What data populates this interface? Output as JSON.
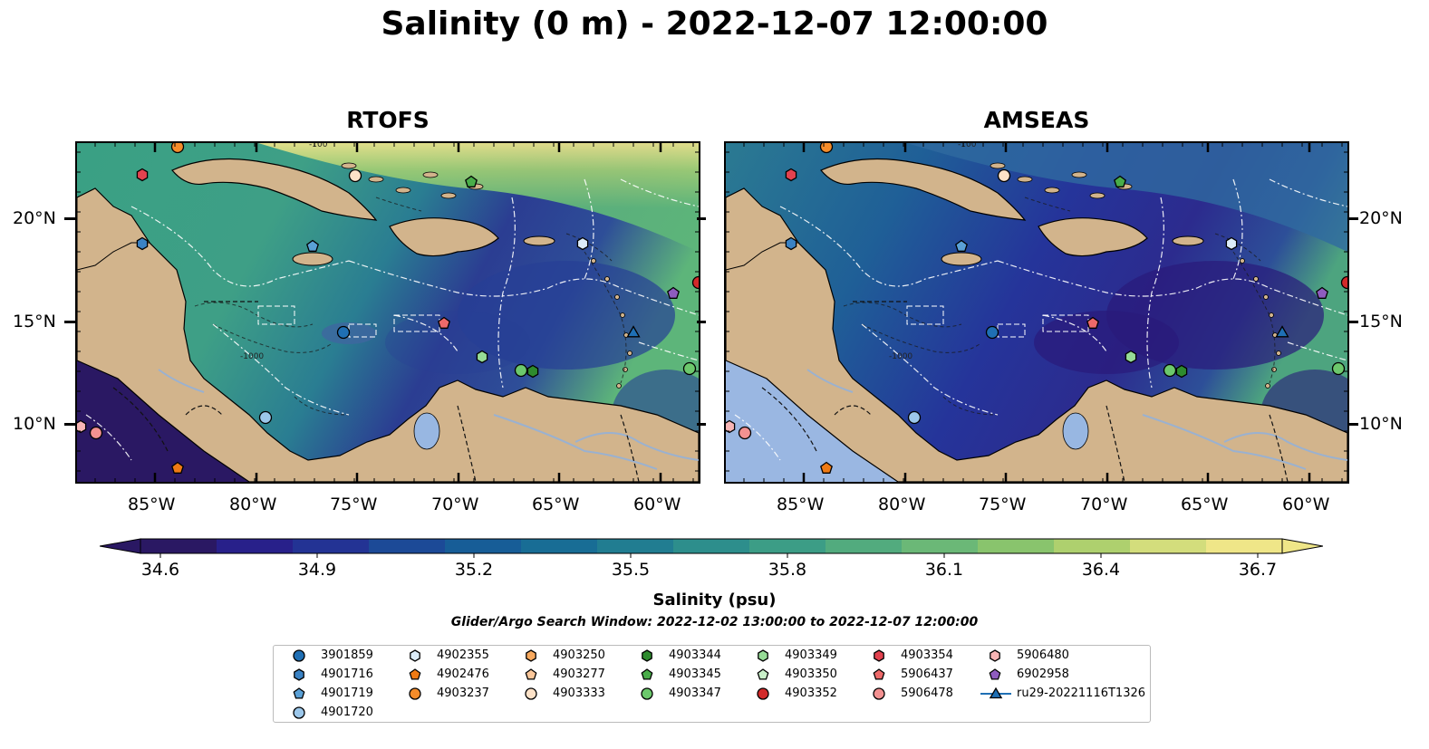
{
  "title": "Salinity (0 m) - 2022-12-07 12:00:00",
  "panels": [
    {
      "title": "RTOFS",
      "variant": "rtofs"
    },
    {
      "title": "AMSEAS",
      "variant": "amseas"
    }
  ],
  "lon_ticks": [
    "85°W",
    "80°W",
    "75°W",
    "70°W",
    "65°W",
    "60°W"
  ],
  "lat_ticks": [
    "20°N",
    "15°N",
    "10°N"
  ],
  "contour_labels": [
    "-100",
    "-1000"
  ],
  "colorbar": {
    "min": 34.6,
    "max": 36.7,
    "ticks": [
      "34.6",
      "34.9",
      "35.2",
      "35.5",
      "35.8",
      "36.1",
      "36.4",
      "36.7"
    ],
    "label": "Salinity (psu)",
    "colors": [
      "#2a1863",
      "#28208a",
      "#233394",
      "#1c4a97",
      "#175d97",
      "#186d95",
      "#217d91",
      "#2d8e8c",
      "#3c9d86",
      "#52ab7e",
      "#6bb877",
      "#89c46d",
      "#aed06e",
      "#d3dd7c",
      "#efe688"
    ]
  },
  "search_window": "Glider/Argo Search Window: 2022-12-02 13:00:00 to 2022-12-07 12:00:00",
  "legend": {
    "entries": [
      {
        "label": "3901859",
        "marker": "circle",
        "color": "#1f6fb4"
      },
      {
        "label": "4901716",
        "marker": "hexagon",
        "color": "#3a82c4"
      },
      {
        "label": "4901719",
        "marker": "pentagon",
        "color": "#5aa0d6"
      },
      {
        "label": "4901720",
        "marker": "circle",
        "color": "#9cc7ea"
      },
      {
        "label": "4902355",
        "marker": "hexagon",
        "color": "#dcecf8"
      },
      {
        "label": "4902476",
        "marker": "pentagon",
        "color": "#ef7a14"
      },
      {
        "label": "4903237",
        "marker": "circle",
        "color": "#f58c2a"
      },
      {
        "label": "4903250",
        "marker": "hexagon",
        "color": "#f8a95e"
      },
      {
        "label": "4903277",
        "marker": "pentagon",
        "color": "#fbc79a"
      },
      {
        "label": "4903333",
        "marker": "circle",
        "color": "#fde2c8"
      },
      {
        "label": "4903344",
        "marker": "hexagon",
        "color": "#2e8b2e"
      },
      {
        "label": "4903345",
        "marker": "pentagon",
        "color": "#49ad49"
      },
      {
        "label": "4903347",
        "marker": "circle",
        "color": "#6cc86c"
      },
      {
        "label": "4903349",
        "marker": "hexagon",
        "color": "#96db96"
      },
      {
        "label": "4903350",
        "marker": "pentagon",
        "color": "#c9f0c9"
      },
      {
        "label": "4903352",
        "marker": "circle",
        "color": "#d22a2a"
      },
      {
        "label": "4903354",
        "marker": "hexagon",
        "color": "#e3424f"
      },
      {
        "label": "5906437",
        "marker": "pentagon",
        "color": "#ee6a6a"
      },
      {
        "label": "5906478",
        "marker": "circle",
        "color": "#f39191"
      },
      {
        "label": "5906480",
        "marker": "hexagon",
        "color": "#f7b5b5"
      },
      {
        "label": "6902958",
        "marker": "pentagon",
        "color": "#8e5cbf"
      },
      {
        "label": "ru29-20221116T1326",
        "marker": "triangle-line",
        "color": "#1f6fb4"
      }
    ]
  }
}
